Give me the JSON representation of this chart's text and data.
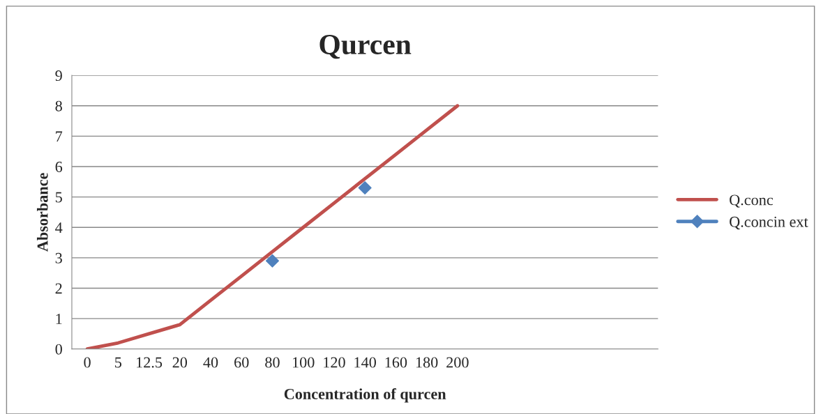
{
  "chart_data": {
    "type": "line",
    "title": "Qurcen",
    "xlabel": "Concentration of qurcen",
    "ylabel": "Absorbance",
    "categories": [
      "0",
      "5",
      "12.5",
      "20",
      "40",
      "60",
      "80",
      "100",
      "120",
      "140",
      "160",
      "180",
      "200",
      null,
      null,
      null,
      null,
      null,
      null
    ],
    "series": [
      {
        "name": "Q.conc",
        "color": "#c0504d",
        "marker": "none",
        "values": [
          0,
          0.2,
          0.5,
          0.8,
          1.6,
          2.4,
          3.2,
          4.0,
          4.8,
          5.6,
          6.4,
          7.2,
          8.0,
          null,
          null,
          null,
          null,
          null,
          null
        ]
      },
      {
        "name": "Q.concin ext",
        "type": "scatter",
        "color": "#4f81bd",
        "marker": "diamond",
        "values": [
          null,
          null,
          null,
          null,
          null,
          null,
          2.9,
          null,
          null,
          5.3,
          null,
          null,
          null,
          null,
          null,
          null,
          null,
          null,
          null
        ]
      }
    ],
    "ylim": [
      0,
      9
    ],
    "yticks": [
      0,
      1,
      2,
      3,
      4,
      5,
      6,
      7,
      8,
      9
    ],
    "grid": "y",
    "legend": "right"
  }
}
